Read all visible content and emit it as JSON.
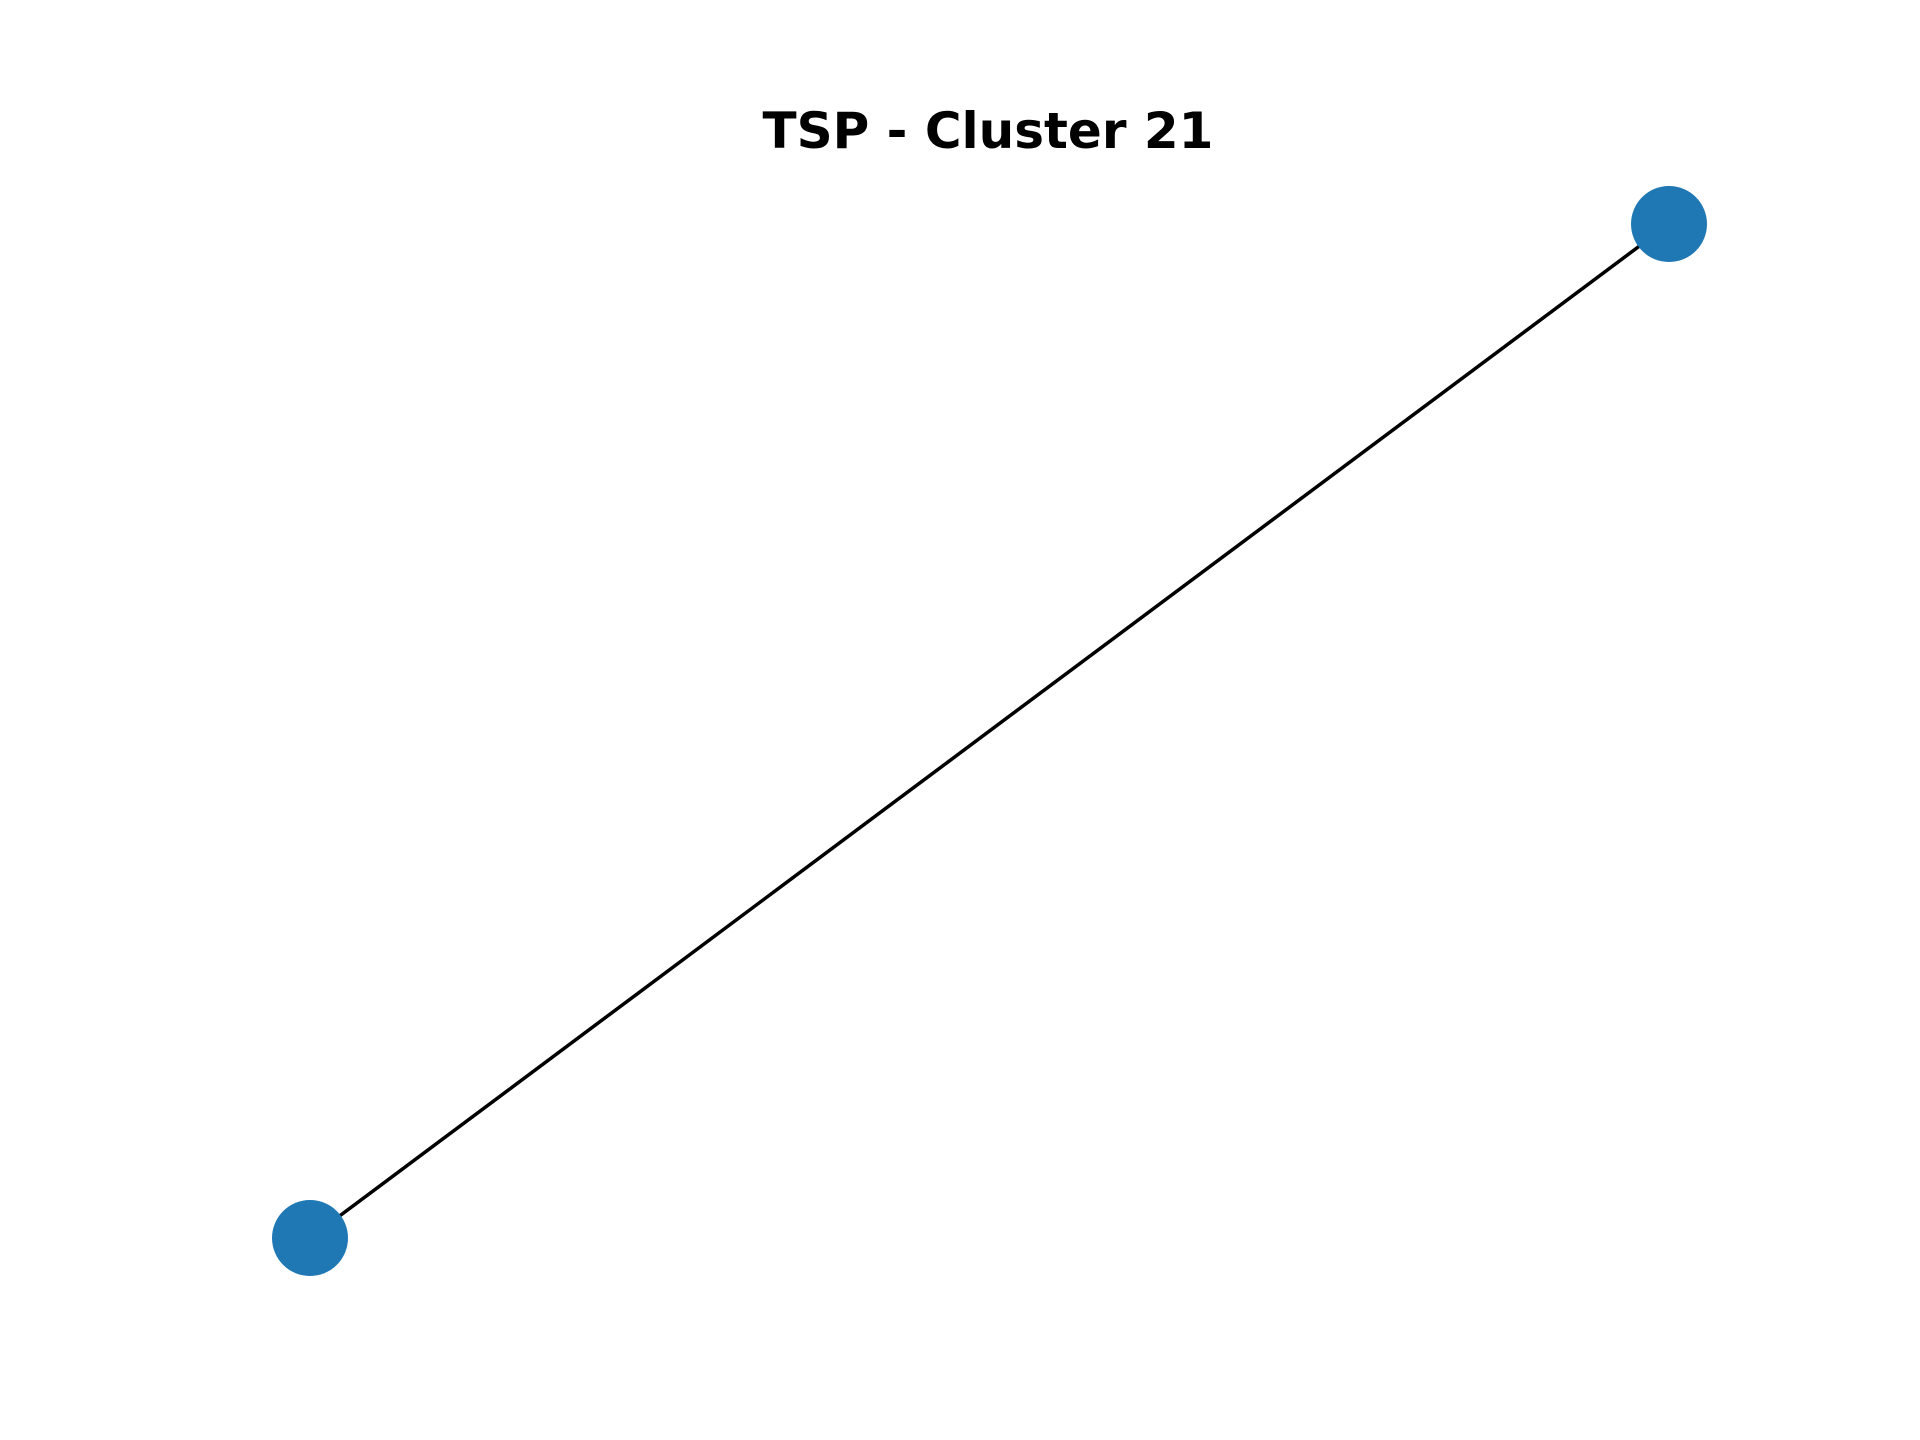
{
  "title": "TSP - Cluster 21",
  "colors": {
    "node": "#1f77b4",
    "edge": "#000000",
    "background": "#ffffff"
  },
  "graph": {
    "nodes": [
      {
        "id": "a"
      },
      {
        "id": "b"
      }
    ],
    "edges": [
      {
        "from": "a",
        "to": "b"
      }
    ]
  }
}
